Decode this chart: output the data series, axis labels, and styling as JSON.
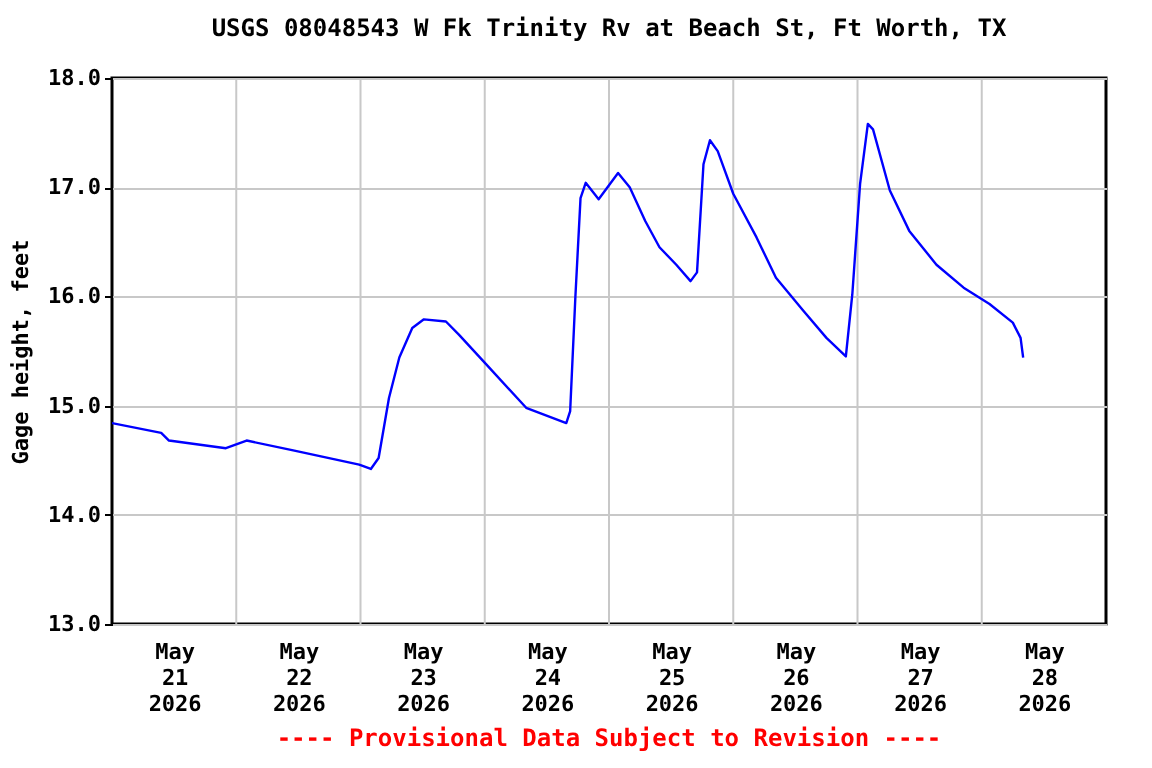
{
  "chart_data": {
    "type": "line",
    "title": "USGS 08048543 W Fk Trinity Rv at Beach St, Ft Worth, TX",
    "ylabel": "Gage height, feet",
    "annotations": [
      "---- Provisional Data Subject to Revision ----"
    ],
    "x": [
      "2026-05-21T00:00",
      "2026-05-21T09:30",
      "2026-05-21T11:00",
      "2026-05-21T22:00",
      "2026-05-22T02:00",
      "2026-05-22T11:00",
      "2026-05-22T23:45",
      "2026-05-23T02:00",
      "2026-05-23T03:30",
      "2026-05-23T05:30",
      "2026-05-23T07:30",
      "2026-05-23T10:00",
      "2026-05-23T12:15",
      "2026-05-23T16:30",
      "2026-05-23T19:00",
      "2026-05-24T00:15",
      "2026-05-24T08:00",
      "2026-05-24T15:45",
      "2026-05-24T16:30",
      "2026-05-24T17:30",
      "2026-05-24T18:30",
      "2026-05-24T19:30",
      "2026-05-24T22:00",
      "2026-05-25T01:45",
      "2026-05-25T04:00",
      "2026-05-25T07:00",
      "2026-05-25T09:45",
      "2026-05-25T13:00",
      "2026-05-25T15:45",
      "2026-05-25T17:00",
      "2026-05-25T18:15",
      "2026-05-25T19:30",
      "2026-05-25T21:00",
      "2026-05-26T00:00",
      "2026-05-26T04:30",
      "2026-05-26T08:15",
      "2026-05-26T13:30",
      "2026-05-26T18:00",
      "2026-05-26T21:45",
      "2026-05-26T23:00",
      "2026-05-27T00:30",
      "2026-05-27T02:00",
      "2026-05-27T03:00",
      "2026-05-27T06:15",
      "2026-05-27T10:00",
      "2026-05-27T15:15",
      "2026-05-27T20:30",
      "2026-05-28T01:30",
      "2026-05-28T06:00",
      "2026-05-28T07:30",
      "2026-05-28T08:00"
    ],
    "series": [
      {
        "color": "#0000ff",
        "values": [
          14.84,
          14.75,
          14.68,
          14.61,
          14.68,
          14.59,
          14.46,
          14.42,
          14.52,
          15.07,
          15.44,
          15.71,
          15.79,
          15.77,
          15.65,
          15.38,
          14.98,
          14.84,
          14.95,
          15.99,
          16.9,
          17.04,
          16.89,
          17.13,
          17.0,
          16.69,
          16.45,
          16.29,
          16.14,
          16.22,
          17.21,
          17.43,
          17.33,
          16.94,
          16.54,
          16.17,
          15.87,
          15.62,
          15.45,
          16.02,
          17.03,
          17.58,
          17.53,
          16.97,
          16.6,
          16.29,
          16.08,
          15.93,
          15.76,
          15.62,
          15.44
        ]
      }
    ],
    "xlim": [
      "2026-05-21T00:00",
      "2026-05-29T00:00"
    ],
    "xticks": [
      {
        "value": "2026-05-21T12:00",
        "label": "May\n21\n2026"
      },
      {
        "value": "2026-05-22T00:00",
        "label": null
      },
      {
        "value": "2026-05-22T12:00",
        "label": "May\n22\n2026"
      },
      {
        "value": "2026-05-23T00:00",
        "label": null
      },
      {
        "value": "2026-05-23T12:00",
        "label": "May\n23\n2026"
      },
      {
        "value": "2026-05-24T00:00",
        "label": null
      },
      {
        "value": "2026-05-24T12:00",
        "label": "May\n24\n2026"
      },
      {
        "value": "2026-05-25T00:00",
        "label": null
      },
      {
        "value": "2026-05-25T12:00",
        "label": "May\n25\n2026"
      },
      {
        "value": "2026-05-26T00:00",
        "label": null
      },
      {
        "value": "2026-05-26T12:00",
        "label": "May\n26\n2026"
      },
      {
        "value": "2026-05-27T00:00",
        "label": null
      },
      {
        "value": "2026-05-27T12:00",
        "label": "May\n27\n2026"
      },
      {
        "value": "2026-05-28T00:00",
        "label": null
      },
      {
        "value": "2026-05-28T12:00",
        "label": "May\n28\n2026"
      }
    ],
    "ylim": [
      13,
      18
    ],
    "yticks": [
      {
        "value": 13,
        "label": "13.0"
      },
      {
        "value": 14,
        "label": "14.0"
      },
      {
        "value": 15,
        "label": "15.0"
      },
      {
        "value": 16,
        "label": "16.0"
      },
      {
        "value": 17,
        "label": "17.0"
      },
      {
        "value": 18,
        "label": "18.0"
      }
    ],
    "grid": true,
    "line_style": "solid"
  }
}
